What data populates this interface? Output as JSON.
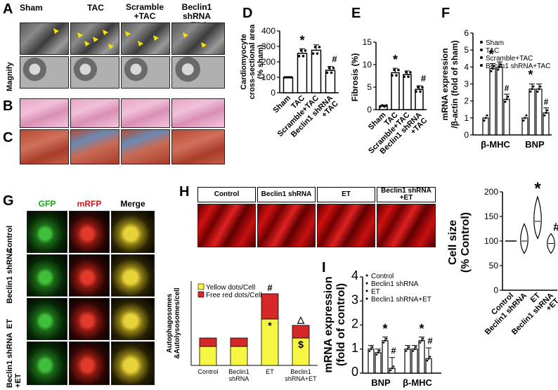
{
  "panels": {
    "A": "A",
    "B": "B",
    "C": "C",
    "D": "D",
    "E": "E",
    "F": "F",
    "G": "G",
    "H": "H",
    "I": "I"
  },
  "groups_A": [
    "Sham",
    "TAC",
    "Scramble\n+TAC",
    "Beclin1 shRNA\n+TAC"
  ],
  "magnify_label": "Magnify",
  "G_headers": [
    "GFP",
    "mRFP",
    "Merge"
  ],
  "G_rows": [
    "Control",
    "Beclin1 shRNA",
    "ET",
    "Beclin1 shRNA\n+ET"
  ],
  "H_boxes": [
    "Control",
    "Beclin1 shRNA",
    "ET",
    "Beclin1 shRNA\n+ET"
  ],
  "chart_data": [
    {
      "id": "D",
      "type": "bar",
      "ylabel": "Cardiomyocyte\ncross-sectional area\n(% sham)",
      "categories": [
        "Sham",
        "TAC",
        "Scramble+TAC",
        "Beclin1 shRNA\n+TAC"
      ],
      "values": [
        100,
        255,
        275,
        145
      ],
      "errors": [
        0,
        30,
        35,
        25
      ],
      "ylim": [
        0,
        400
      ],
      "yticks": [
        0,
        100,
        200,
        300,
        400
      ],
      "annotations": [
        "",
        "*",
        "",
        "#"
      ]
    },
    {
      "id": "E",
      "type": "bar",
      "ylabel": "Fibrosis (%)",
      "categories": [
        "Sham",
        "TAC",
        "Scramble+TAC",
        "Beclin1 shRNA\n+TAC"
      ],
      "values": [
        0.8,
        8.2,
        7.8,
        4.5
      ],
      "errors": [
        0.2,
        1.0,
        0.8,
        0.8
      ],
      "ylim": [
        0,
        15
      ],
      "yticks": [
        0,
        5,
        10,
        15
      ],
      "annotations": [
        "",
        "*",
        "",
        "#"
      ]
    },
    {
      "id": "F",
      "type": "bar",
      "ylabel": "mRNA expression\n/β-actin (fold of sham)",
      "categories": [
        "β-MHC",
        "BNP"
      ],
      "series": [
        {
          "name": "Sham",
          "values": [
            1.0,
            1.0
          ]
        },
        {
          "name": "TAC",
          "values": [
            3.9,
            2.7
          ]
        },
        {
          "name": "Scramble+TAC",
          "values": [
            4.0,
            2.7
          ]
        },
        {
          "name": "Beclin1 shRNA+TAC",
          "values": [
            2.1,
            1.3
          ]
        }
      ],
      "ylim": [
        0,
        6
      ],
      "yticks": [
        0,
        1,
        2,
        3,
        4,
        5,
        6
      ],
      "annotations": [
        "*",
        "#"
      ]
    },
    {
      "id": "H-violin",
      "type": "violin",
      "ylabel": "Cell size\n(% Control)",
      "categories": [
        "Control",
        "Beclin1 shRNA",
        "ET",
        "Beclin1 shRNA\n+ET"
      ],
      "medians": [
        100,
        100,
        140,
        95
      ],
      "ranges": [
        [
          100,
          100
        ],
        [
          75,
          135
        ],
        [
          105,
          190
        ],
        [
          75,
          115
        ]
      ],
      "ylim": [
        0,
        200
      ],
      "yticks": [
        0,
        50,
        100,
        150,
        200
      ],
      "annotations": [
        "",
        "",
        "*",
        "#"
      ]
    },
    {
      "id": "H-stacked",
      "type": "bar",
      "ylabel": "Autophagosomes\n&Autolysosomes/cell",
      "categories": [
        "Control",
        "Beclin1\nshRNA",
        "ET",
        "Beclin1\nshRNA+ET"
      ],
      "series": [
        {
          "name": "Yellow dots/Cell",
          "values": [
            9,
            9,
            22,
            13
          ],
          "color": "#f5f542"
        },
        {
          "name": "Free red dots/Cell",
          "values": [
            4,
            4,
            12,
            6
          ],
          "color": "#d62828"
        }
      ],
      "annotations_top": [
        "",
        "",
        "#",
        "△"
      ],
      "annotations_yellow": [
        "",
        "",
        "*",
        "$"
      ]
    },
    {
      "id": "I",
      "type": "bar",
      "ylabel": "mRNA expression\n(fold of control)",
      "categories": [
        "BNP",
        "β-MHC"
      ],
      "series": [
        {
          "name": "Control",
          "values": [
            1.0,
            1.0
          ]
        },
        {
          "name": "Beclin1 shRNA",
          "values": [
            0.85,
            1.0
          ]
        },
        {
          "name": "ET",
          "values": [
            1.35,
            1.35
          ]
        },
        {
          "name": "Beclin1 shRNA+ET",
          "values": [
            0.2,
            0.6
          ]
        }
      ],
      "ylim": [
        0,
        4
      ],
      "yticks": [
        0,
        1,
        2,
        3,
        4
      ],
      "annotations": [
        "*",
        "#"
      ]
    }
  ],
  "colors": {
    "bar_fill": "#ffffff",
    "stroke": "#000000",
    "yellow": "#f5f542",
    "red": "#d62828"
  }
}
